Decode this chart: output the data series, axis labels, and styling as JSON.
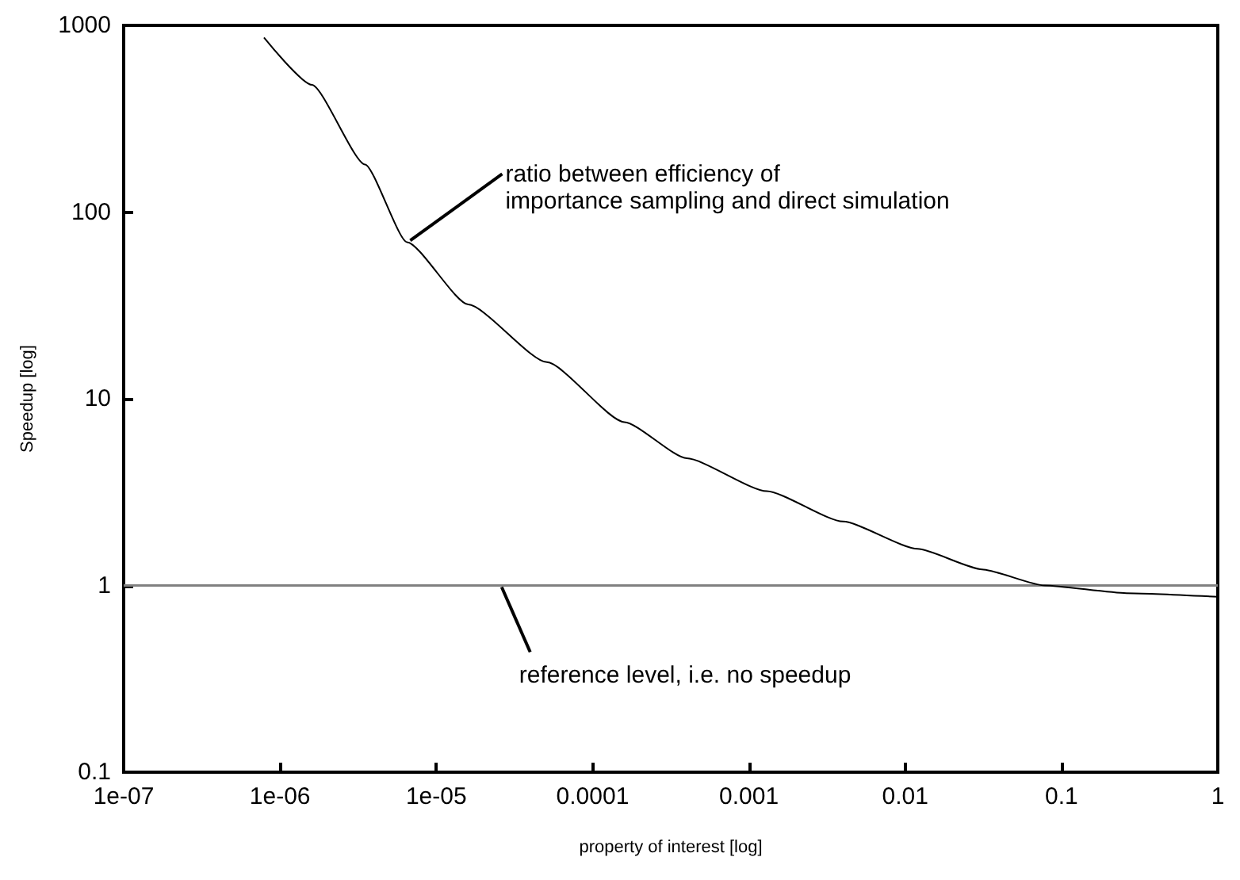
{
  "chart_data": {
    "type": "line",
    "xlabel": "property of interest [log]",
    "ylabel": "Speedup [log]",
    "log": "xy",
    "grid": false,
    "marker": "none",
    "line_style": "solid",
    "xlim": [
      1e-07,
      1
    ],
    "ylim": [
      0.1,
      1000
    ],
    "xticks": [
      {
        "value": 1e-07,
        "label": "1e-07"
      },
      {
        "value": 1e-06,
        "label": "1e-06"
      },
      {
        "value": 1e-05,
        "label": "1e-05"
      },
      {
        "value": 0.0001,
        "label": "0.0001"
      },
      {
        "value": 0.001,
        "label": "0.001"
      },
      {
        "value": 0.01,
        "label": "0.01"
      },
      {
        "value": 0.1,
        "label": "0.1"
      },
      {
        "value": 1,
        "label": "1"
      }
    ],
    "yticks": [
      0.1,
      1,
      10,
      100,
      1000
    ],
    "series": [
      {
        "color": "#000000",
        "x": [
          7.9e-07,
          1.6e-06,
          3.5e-06,
          6.5e-06,
          1.6e-05,
          5.1e-05,
          0.00016,
          0.0004,
          0.0013,
          0.004,
          0.012,
          0.031,
          0.078,
          0.26,
          1
        ],
        "values": [
          860,
          480,
          180,
          69,
          32,
          15.7,
          7.5,
          4.8,
          3.2,
          2.2,
          1.57,
          1.22,
          1,
          0.91,
          0.87
        ]
      }
    ],
    "ref_lines": [
      {
        "axis": "y",
        "value": 1,
        "color": "#808080"
      }
    ],
    "annotations": [
      {
        "text": "ratio between efficiency of\nimportance sampling and direct simulation",
        "x": 6.5e-06,
        "y": 69
      },
      {
        "text": "reference level, i.e. no speedup",
        "x": 2.5e-05,
        "y": 1
      }
    ]
  }
}
